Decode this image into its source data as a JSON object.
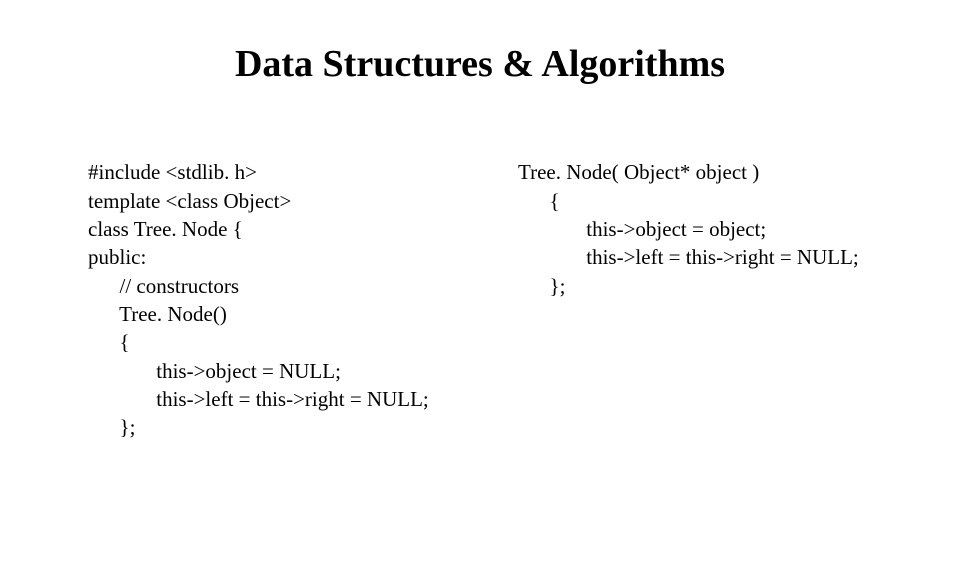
{
  "title": "Data Structures & Algorithms",
  "left": {
    "l0": "#include <stdlib. h>",
    "l1": "template <class Object>",
    "l2": "class Tree. Node {",
    "l3": "public:",
    "l4": "      // constructors",
    "l5": "      Tree. Node()",
    "l6": "      {",
    "l7": "             this->object = NULL;",
    "l8": "             this->left = this->right = NULL;",
    "l9": "      };"
  },
  "right": {
    "r0": "Tree. Node( Object* object )",
    "r1": "      {",
    "r2": "             this->object = object;",
    "r3": "             this->left = this->right = NULL;",
    "r4": "      };"
  },
  "style": {
    "background": "#ffffff",
    "text_color": "#000000",
    "title_fontsize": 38,
    "body_fontsize": 21,
    "font_family": "Times New Roman"
  }
}
